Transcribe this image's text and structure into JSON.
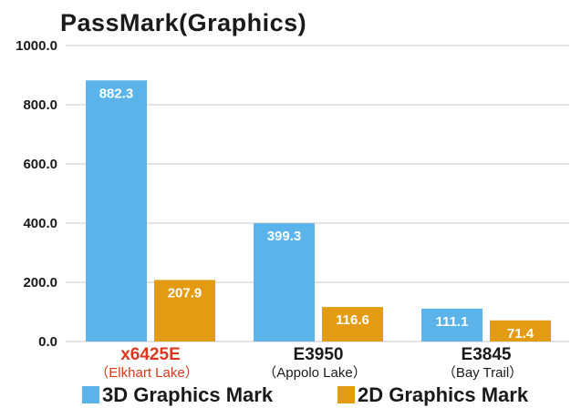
{
  "chart_data": {
    "type": "bar",
    "title": "PassMark(Graphics)",
    "categories": [
      {
        "name": "x6425E",
        "sub": "（Elkhart Lake）",
        "highlight": true
      },
      {
        "name": "E3950",
        "sub": "（Appolo Lake）",
        "highlight": false
      },
      {
        "name": "E3845",
        "sub": "（Bay Trail）",
        "highlight": false
      }
    ],
    "series": [
      {
        "name": "3D Graphics Mark",
        "values": [
          882.3,
          399.3,
          111.1
        ],
        "color": "#5ab4ea"
      },
      {
        "name": "2D Graphics Mark",
        "values": [
          207.9,
          116.6,
          71.4
        ],
        "color": "#e39b14"
      }
    ],
    "value_labels": [
      [
        "882.3",
        "399.3",
        "111.1"
      ],
      [
        "207.9",
        "116.6",
        "71.4"
      ]
    ],
    "yticks": [
      "0.0",
      "200.0",
      "400.0",
      "600.0",
      "800.0",
      "1000.0"
    ],
    "ylim": [
      0,
      1000
    ],
    "grid": true,
    "legend": "bottom",
    "highlight_color": "#d9391e",
    "category_color": "#1a1a1a"
  }
}
